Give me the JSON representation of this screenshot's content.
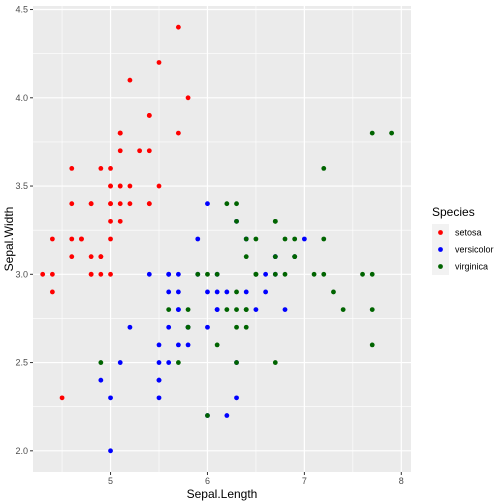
{
  "chart_data": {
    "type": "scatter",
    "xlabel": "Sepal.Length",
    "ylabel": "Sepal.Width",
    "xlim": [
      4.2,
      8.1
    ],
    "ylim": [
      1.88,
      4.52
    ],
    "x_ticks": [
      5,
      6,
      7,
      8
    ],
    "x_tick_labels": [
      "5",
      "6",
      "7",
      "8"
    ],
    "y_ticks": [
      2.0,
      2.5,
      3.0,
      3.5,
      4.0,
      4.5
    ],
    "y_tick_labels": [
      "2.0",
      "2.5",
      "3.0",
      "3.5",
      "4.0",
      "4.5"
    ],
    "grid": true,
    "legend": {
      "title": "Species",
      "placement": "right"
    },
    "panel_color": "#ebebeb",
    "grid_color": "#ffffff",
    "series": [
      {
        "name": "setosa",
        "color": "#ff0000",
        "points": [
          [
            5.1,
            3.5
          ],
          [
            4.9,
            3.0
          ],
          [
            4.7,
            3.2
          ],
          [
            4.6,
            3.1
          ],
          [
            5.0,
            3.6
          ],
          [
            5.4,
            3.9
          ],
          [
            4.6,
            3.4
          ],
          [
            5.0,
            3.4
          ],
          [
            4.4,
            2.9
          ],
          [
            4.9,
            3.1
          ],
          [
            5.4,
            3.7
          ],
          [
            4.8,
            3.4
          ],
          [
            4.8,
            3.0
          ],
          [
            4.3,
            3.0
          ],
          [
            5.8,
            4.0
          ],
          [
            5.7,
            4.4
          ],
          [
            5.4,
            3.9
          ],
          [
            5.1,
            3.5
          ],
          [
            5.7,
            3.8
          ],
          [
            5.1,
            3.8
          ],
          [
            5.4,
            3.4
          ],
          [
            5.1,
            3.7
          ],
          [
            4.6,
            3.6
          ],
          [
            5.1,
            3.3
          ],
          [
            4.8,
            3.4
          ],
          [
            5.0,
            3.0
          ],
          [
            5.0,
            3.4
          ],
          [
            5.2,
            3.5
          ],
          [
            5.2,
            3.4
          ],
          [
            4.7,
            3.2
          ],
          [
            4.8,
            3.1
          ],
          [
            5.4,
            3.4
          ],
          [
            5.2,
            4.1
          ],
          [
            5.5,
            4.2
          ],
          [
            4.9,
            3.1
          ],
          [
            5.0,
            3.2
          ],
          [
            5.5,
            3.5
          ],
          [
            4.9,
            3.6
          ],
          [
            4.4,
            3.0
          ],
          [
            5.1,
            3.4
          ],
          [
            5.0,
            3.5
          ],
          [
            4.5,
            2.3
          ],
          [
            4.4,
            3.2
          ],
          [
            5.0,
            3.5
          ],
          [
            5.1,
            3.8
          ],
          [
            4.8,
            3.0
          ],
          [
            5.1,
            3.8
          ],
          [
            4.6,
            3.2
          ],
          [
            5.3,
            3.7
          ],
          [
            5.0,
            3.3
          ]
        ]
      },
      {
        "name": "versicolor",
        "color": "#0000ff",
        "points": [
          [
            7.0,
            3.2
          ],
          [
            6.4,
            3.2
          ],
          [
            6.9,
            3.1
          ],
          [
            5.5,
            2.3
          ],
          [
            6.5,
            2.8
          ],
          [
            5.7,
            2.8
          ],
          [
            6.3,
            3.3
          ],
          [
            4.9,
            2.4
          ],
          [
            6.6,
            2.9
          ],
          [
            5.2,
            2.7
          ],
          [
            5.0,
            2.0
          ],
          [
            5.9,
            3.0
          ],
          [
            6.0,
            2.2
          ],
          [
            6.1,
            2.9
          ],
          [
            5.6,
            2.9
          ],
          [
            6.7,
            3.1
          ],
          [
            5.6,
            3.0
          ],
          [
            5.8,
            2.7
          ],
          [
            6.2,
            2.2
          ],
          [
            5.6,
            2.5
          ],
          [
            5.9,
            3.2
          ],
          [
            6.1,
            2.8
          ],
          [
            6.3,
            2.5
          ],
          [
            6.1,
            2.8
          ],
          [
            6.4,
            2.9
          ],
          [
            6.6,
            3.0
          ],
          [
            6.8,
            2.8
          ],
          [
            6.7,
            3.0
          ],
          [
            6.0,
            2.9
          ],
          [
            5.7,
            2.6
          ],
          [
            5.5,
            2.4
          ],
          [
            5.5,
            2.4
          ],
          [
            5.8,
            2.7
          ],
          [
            6.0,
            2.7
          ],
          [
            5.4,
            3.0
          ],
          [
            6.0,
            3.4
          ],
          [
            6.7,
            3.1
          ],
          [
            6.3,
            2.3
          ],
          [
            5.6,
            3.0
          ],
          [
            5.5,
            2.5
          ],
          [
            5.5,
            2.6
          ],
          [
            6.1,
            3.0
          ],
          [
            5.8,
            2.6
          ],
          [
            5.0,
            2.3
          ],
          [
            5.6,
            2.7
          ],
          [
            5.7,
            3.0
          ],
          [
            5.7,
            2.9
          ],
          [
            6.2,
            2.9
          ],
          [
            5.1,
            2.5
          ],
          [
            5.7,
            2.8
          ]
        ]
      },
      {
        "name": "virginica",
        "color": "#006400",
        "points": [
          [
            6.3,
            3.3
          ],
          [
            5.8,
            2.7
          ],
          [
            7.1,
            3.0
          ],
          [
            6.3,
            2.9
          ],
          [
            6.5,
            3.0
          ],
          [
            7.6,
            3.0
          ],
          [
            4.9,
            2.5
          ],
          [
            7.3,
            2.9
          ],
          [
            6.7,
            2.5
          ],
          [
            7.2,
            3.6
          ],
          [
            6.5,
            3.2
          ],
          [
            6.4,
            2.7
          ],
          [
            6.8,
            3.0
          ],
          [
            5.7,
            2.5
          ],
          [
            5.8,
            2.8
          ],
          [
            6.4,
            3.2
          ],
          [
            6.5,
            3.0
          ],
          [
            7.7,
            3.8
          ],
          [
            7.7,
            2.6
          ],
          [
            6.0,
            2.2
          ],
          [
            6.9,
            3.2
          ],
          [
            5.6,
            2.8
          ],
          [
            7.7,
            2.8
          ],
          [
            6.3,
            2.7
          ],
          [
            6.7,
            3.3
          ],
          [
            7.2,
            3.2
          ],
          [
            6.2,
            2.8
          ],
          [
            6.1,
            3.0
          ],
          [
            6.4,
            2.8
          ],
          [
            7.2,
            3.0
          ],
          [
            7.4,
            2.8
          ],
          [
            7.9,
            3.8
          ],
          [
            6.4,
            2.8
          ],
          [
            6.3,
            2.8
          ],
          [
            6.1,
            2.6
          ],
          [
            7.7,
            3.0
          ],
          [
            6.3,
            3.4
          ],
          [
            6.4,
            3.1
          ],
          [
            6.0,
            3.0
          ],
          [
            6.9,
            3.1
          ],
          [
            6.7,
            3.1
          ],
          [
            6.9,
            3.1
          ],
          [
            5.8,
            2.7
          ],
          [
            6.8,
            3.2
          ],
          [
            6.7,
            3.3
          ],
          [
            6.7,
            3.0
          ],
          [
            6.3,
            2.5
          ],
          [
            6.5,
            3.0
          ],
          [
            6.2,
            3.4
          ],
          [
            5.9,
            3.0
          ]
        ]
      }
    ]
  }
}
